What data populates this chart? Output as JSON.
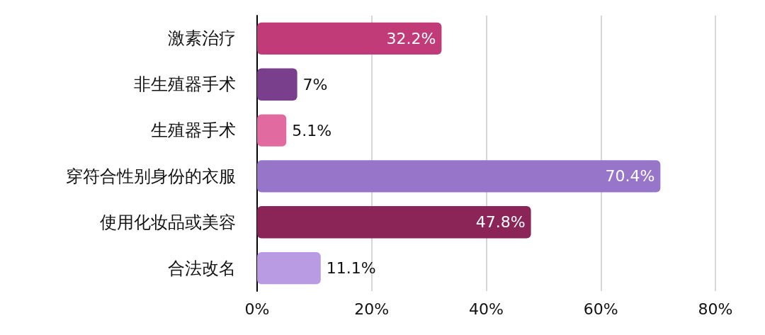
{
  "chart_data": {
    "type": "bar",
    "orientation": "horizontal",
    "categories": [
      "激素治疗",
      "非生殖器手术",
      "生殖器手术",
      "穿符合性别身份的衣服",
      "使用化妆品或美容",
      "合法改名"
    ],
    "values": [
      32.2,
      7,
      5.1,
      70.4,
      47.8,
      11.1
    ],
    "colors": [
      "#c13b78",
      "#7a3f8c",
      "#e16aa1",
      "#9776c9",
      "#8b2558",
      "#b99be3"
    ],
    "value_labels": [
      "32.2%",
      "7%",
      "5.1%",
      "70.4%",
      "47.8%",
      "11.1%"
    ],
    "xlim": [
      0,
      80
    ],
    "xticks": [
      {
        "value": 0,
        "label": "0%"
      },
      {
        "value": 20,
        "label": "20%"
      },
      {
        "value": 40,
        "label": "40%"
      },
      {
        "value": 60,
        "label": "60%"
      },
      {
        "value": 80,
        "label": "80%"
      }
    ],
    "grid": "x"
  }
}
